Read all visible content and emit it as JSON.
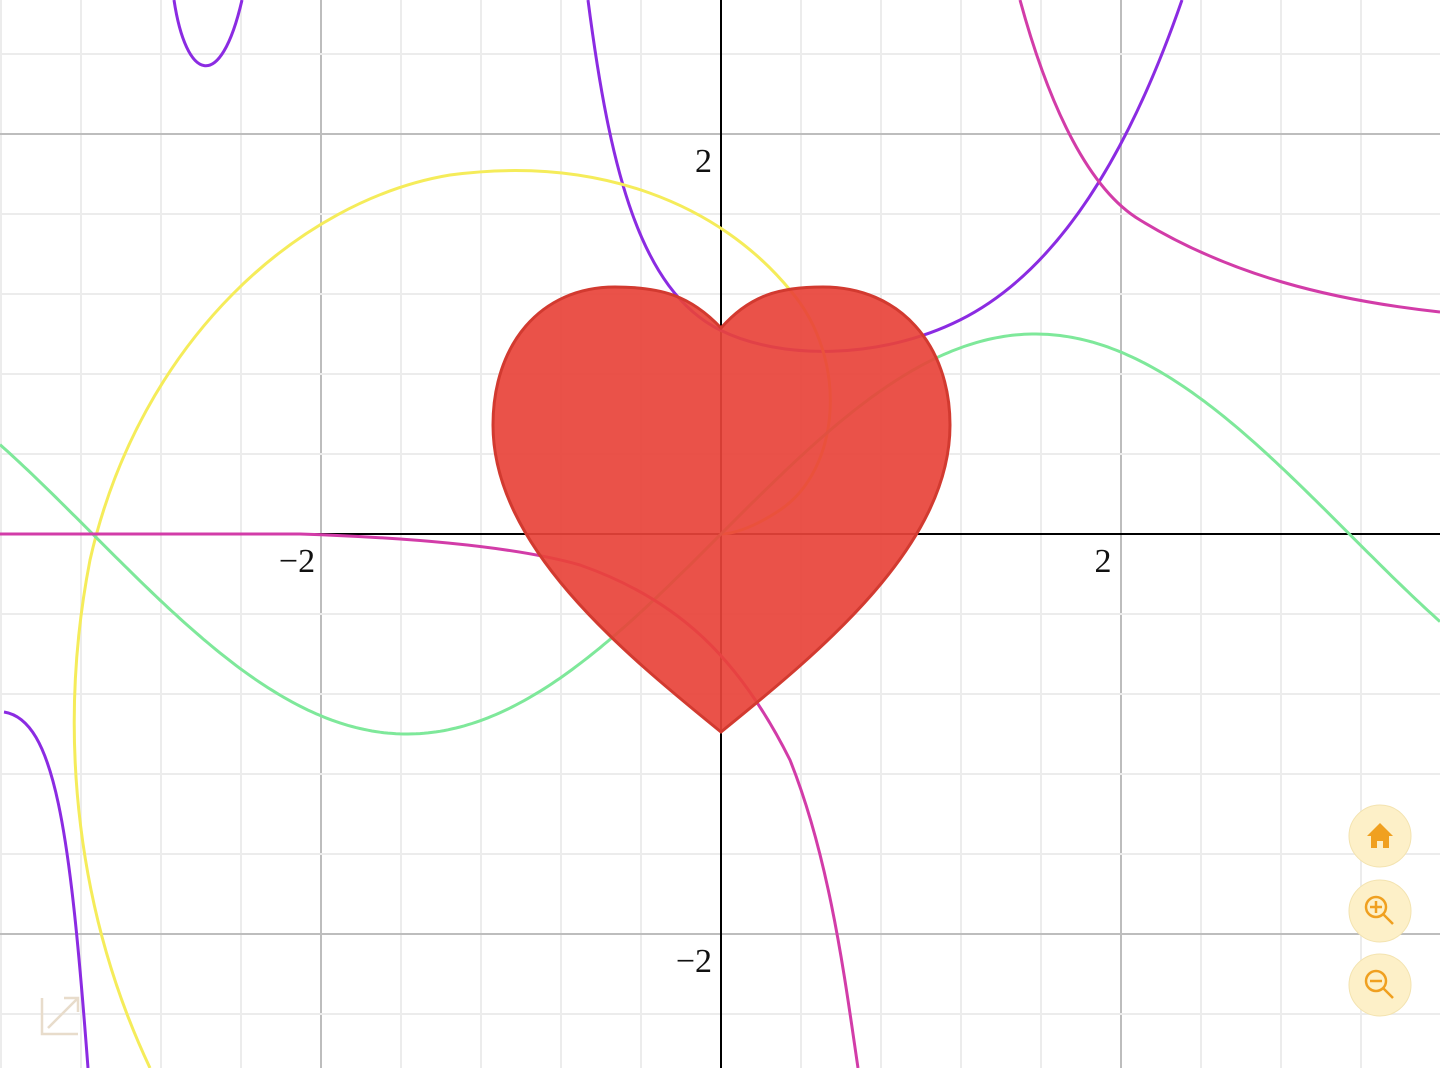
{
  "axes": {
    "x_labels": [
      "−2",
      "2"
    ],
    "y_labels": [
      "2",
      "−2"
    ]
  }
}
